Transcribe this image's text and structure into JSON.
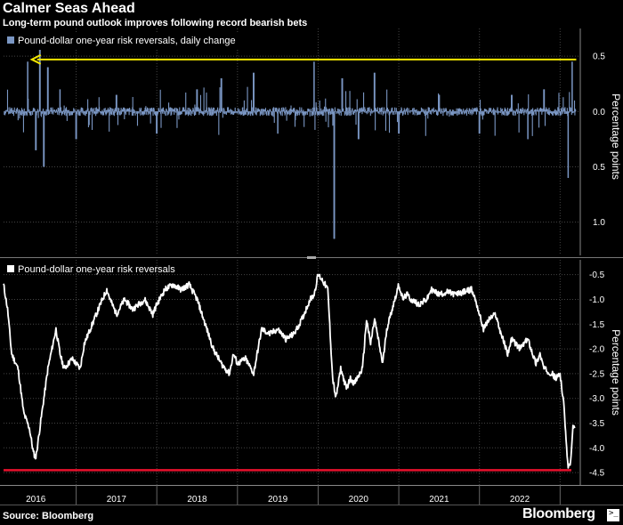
{
  "header": {
    "title": "Calmer Seas Ahead",
    "subtitle": "Long-term pound outlook improves following record bearish bets"
  },
  "footer": {
    "source": "Source: Bloomberg",
    "brand": "Bloomberg",
    "terminal_glyph": ">_"
  },
  "colors": {
    "background": "#000000",
    "bar_series": "#7b97c4",
    "line_series": "#ffffff",
    "arrow": "#f2e600",
    "record_line": "#e8102c",
    "grid": "#444444"
  },
  "chart_data": [
    {
      "type": "bar",
      "legend": "Pound-dollar one-year risk reversals, daily change",
      "ylabel": "Percentage points",
      "yticks": [
        {
          "value": 0.5,
          "label": "0.5"
        },
        {
          "value": 0.0,
          "label": "0.0"
        },
        {
          "value": -0.5,
          "label": "0.5"
        },
        {
          "value": -1.0,
          "label": "1.0"
        }
      ],
      "ylim": [
        -1.3,
        0.75
      ],
      "xlim": [
        2015.6,
        2022.75
      ],
      "grid": true,
      "annotation": {
        "type": "arrow",
        "from": 2022.7,
        "to": 2015.95,
        "y": 0.47
      },
      "anchor_points": [
        [
          2015.6,
          0.0
        ],
        [
          2015.9,
          0.45
        ],
        [
          2016.0,
          -0.35
        ],
        [
          2016.05,
          0.6
        ],
        [
          2016.1,
          -0.5
        ],
        [
          2016.15,
          0.4
        ],
        [
          2016.3,
          0.2
        ],
        [
          2016.5,
          -0.25
        ],
        [
          2017.0,
          0.15
        ],
        [
          2017.5,
          -0.2
        ],
        [
          2018.0,
          0.2
        ],
        [
          2018.3,
          0.3
        ],
        [
          2018.7,
          0.35
        ],
        [
          2019.0,
          -0.2
        ],
        [
          2019.45,
          0.45
        ],
        [
          2019.7,
          -1.15
        ],
        [
          2019.8,
          0.3
        ],
        [
          2020.0,
          -0.25
        ],
        [
          2020.2,
          0.35
        ],
        [
          2020.5,
          -0.2
        ],
        [
          2021.0,
          0.15
        ],
        [
          2021.5,
          -0.2
        ],
        [
          2021.9,
          0.15
        ],
        [
          2022.1,
          -0.25
        ],
        [
          2022.3,
          0.2
        ],
        [
          2022.6,
          -0.6
        ],
        [
          2022.65,
          0.45
        ],
        [
          2022.7,
          0.0
        ]
      ]
    },
    {
      "type": "line",
      "legend": "Pound-dollar one-year risk reversals",
      "ylabel": "Percentage points",
      "yticks": [
        {
          "value": -0.5,
          "label": "-0.5"
        },
        {
          "value": -1.0,
          "label": "-1.0"
        },
        {
          "value": -1.5,
          "label": "-1.5"
        },
        {
          "value": -2.0,
          "label": "-2.0"
        },
        {
          "value": -2.5,
          "label": "-2.5"
        },
        {
          "value": -3.0,
          "label": "-3.0"
        },
        {
          "value": -3.5,
          "label": "-3.5"
        },
        {
          "value": -4.0,
          "label": "-4.0"
        },
        {
          "value": -4.5,
          "label": "-4.5"
        }
      ],
      "ylim": [
        -4.75,
        -0.2
      ],
      "xlim": [
        2015.6,
        2022.75
      ],
      "x_ticks": [
        {
          "value": 2016,
          "label": "2016"
        },
        {
          "value": 2017,
          "label": "2017"
        },
        {
          "value": 2018,
          "label": "2018"
        },
        {
          "value": 2019,
          "label": "2019"
        },
        {
          "value": 2020,
          "label": "2020"
        },
        {
          "value": 2021,
          "label": "2021"
        },
        {
          "value": 2022,
          "label": "2022"
        }
      ],
      "grid": true,
      "reference_line": {
        "y": -4.45,
        "meaning": "record low"
      },
      "points": [
        [
          2015.6,
          -0.7
        ],
        [
          2015.65,
          -1.2
        ],
        [
          2015.7,
          -2.1
        ],
        [
          2015.78,
          -2.4
        ],
        [
          2015.85,
          -3.3
        ],
        [
          2015.92,
          -3.6
        ],
        [
          2015.97,
          -4.1
        ],
        [
          2016.0,
          -4.2
        ],
        [
          2016.05,
          -3.6
        ],
        [
          2016.1,
          -3.0
        ],
        [
          2016.15,
          -2.4
        ],
        [
          2016.2,
          -2.0
        ],
        [
          2016.25,
          -1.6
        ],
        [
          2016.3,
          -2.1
        ],
        [
          2016.35,
          -2.4
        ],
        [
          2016.45,
          -2.2
        ],
        [
          2016.55,
          -2.4
        ],
        [
          2016.6,
          -1.9
        ],
        [
          2016.7,
          -1.5
        ],
        [
          2016.8,
          -1.1
        ],
        [
          2016.88,
          -0.8
        ],
        [
          2016.92,
          -1.0
        ],
        [
          2017.0,
          -1.3
        ],
        [
          2017.1,
          -1.0
        ],
        [
          2017.2,
          -1.2
        ],
        [
          2017.35,
          -1.0
        ],
        [
          2017.45,
          -1.3
        ],
        [
          2017.5,
          -1.1
        ],
        [
          2017.6,
          -0.8
        ],
        [
          2017.7,
          -0.7
        ],
        [
          2017.8,
          -0.8
        ],
        [
          2017.9,
          -0.7
        ],
        [
          2018.0,
          -1.0
        ],
        [
          2018.1,
          -1.5
        ],
        [
          2018.2,
          -2.0
        ],
        [
          2018.3,
          -2.3
        ],
        [
          2018.4,
          -2.5
        ],
        [
          2018.45,
          -2.1
        ],
        [
          2018.5,
          -2.3
        ],
        [
          2018.6,
          -2.2
        ],
        [
          2018.7,
          -2.5
        ],
        [
          2018.8,
          -1.6
        ],
        [
          2018.9,
          -1.7
        ],
        [
          2019.0,
          -1.6
        ],
        [
          2019.1,
          -1.8
        ],
        [
          2019.2,
          -1.7
        ],
        [
          2019.3,
          -1.4
        ],
        [
          2019.4,
          -1.0
        ],
        [
          2019.45,
          -0.9
        ],
        [
          2019.5,
          -0.5
        ],
        [
          2019.55,
          -0.6
        ],
        [
          2019.62,
          -0.8
        ],
        [
          2019.68,
          -2.6
        ],
        [
          2019.72,
          -3.0
        ],
        [
          2019.78,
          -2.4
        ],
        [
          2019.85,
          -2.8
        ],
        [
          2019.9,
          -2.6
        ],
        [
          2019.95,
          -2.7
        ],
        [
          2020.05,
          -2.4
        ],
        [
          2020.1,
          -1.4
        ],
        [
          2020.15,
          -1.9
        ],
        [
          2020.2,
          -1.4
        ],
        [
          2020.3,
          -2.3
        ],
        [
          2020.35,
          -1.6
        ],
        [
          2020.45,
          -1.0
        ],
        [
          2020.5,
          -0.7
        ],
        [
          2020.55,
          -1.0
        ],
        [
          2020.6,
          -0.9
        ],
        [
          2020.65,
          -1.0
        ],
        [
          2020.75,
          -1.1
        ],
        [
          2020.85,
          -1.0
        ],
        [
          2020.9,
          -0.8
        ],
        [
          2021.0,
          -0.9
        ],
        [
          2021.1,
          -0.85
        ],
        [
          2021.2,
          -0.9
        ],
        [
          2021.3,
          -0.85
        ],
        [
          2021.4,
          -0.8
        ],
        [
          2021.45,
          -1.0
        ],
        [
          2021.5,
          -1.3
        ],
        [
          2021.55,
          -1.6
        ],
        [
          2021.62,
          -1.4
        ],
        [
          2021.7,
          -1.3
        ],
        [
          2021.75,
          -1.6
        ],
        [
          2021.85,
          -2.1
        ],
        [
          2021.9,
          -1.8
        ],
        [
          2022.0,
          -2.0
        ],
        [
          2022.1,
          -1.8
        ],
        [
          2022.2,
          -2.3
        ],
        [
          2022.25,
          -2.1
        ],
        [
          2022.3,
          -2.4
        ],
        [
          2022.4,
          -2.5
        ],
        [
          2022.45,
          -2.6
        ],
        [
          2022.5,
          -2.5
        ],
        [
          2022.55,
          -3.2
        ],
        [
          2022.58,
          -4.0
        ],
        [
          2022.6,
          -4.4
        ],
        [
          2022.63,
          -4.3
        ],
        [
          2022.66,
          -3.6
        ],
        [
          2022.68,
          -3.6
        ]
      ]
    }
  ]
}
